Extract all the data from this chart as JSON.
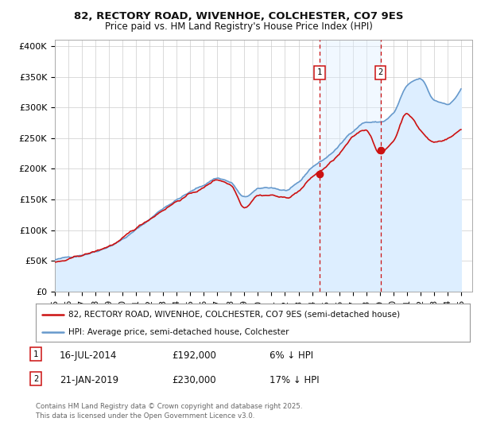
{
  "title_line1": "82, RECTORY ROAD, WIVENHOE, COLCHESTER, CO7 9ES",
  "title_line2": "Price paid vs. HM Land Registry's House Price Index (HPI)",
  "ylabel_ticks": [
    "£0",
    "£50K",
    "£100K",
    "£150K",
    "£200K",
    "£250K",
    "£300K",
    "£350K",
    "£400K"
  ],
  "ytick_values": [
    0,
    50000,
    100000,
    150000,
    200000,
    250000,
    300000,
    350000,
    400000
  ],
  "ylim": [
    0,
    410000
  ],
  "xlim_start": 1995.0,
  "xlim_end": 2025.83,
  "hpi_color": "#6699cc",
  "hpi_fill_color": "#ddeeff",
  "price_color": "#cc1111",
  "marker1_x": 2014.54,
  "marker1_y": 192000,
  "marker2_x": 2019.06,
  "marker2_y": 230000,
  "legend_line1": "82, RECTORY ROAD, WIVENHOE, COLCHESTER, CO7 9ES (semi-detached house)",
  "legend_line2": "HPI: Average price, semi-detached house, Colchester",
  "background_color": "#ffffff",
  "grid_color": "#cccccc",
  "footnote": "Contains HM Land Registry data © Crown copyright and database right 2025.\nThis data is licensed under the Open Government Licence v3.0."
}
